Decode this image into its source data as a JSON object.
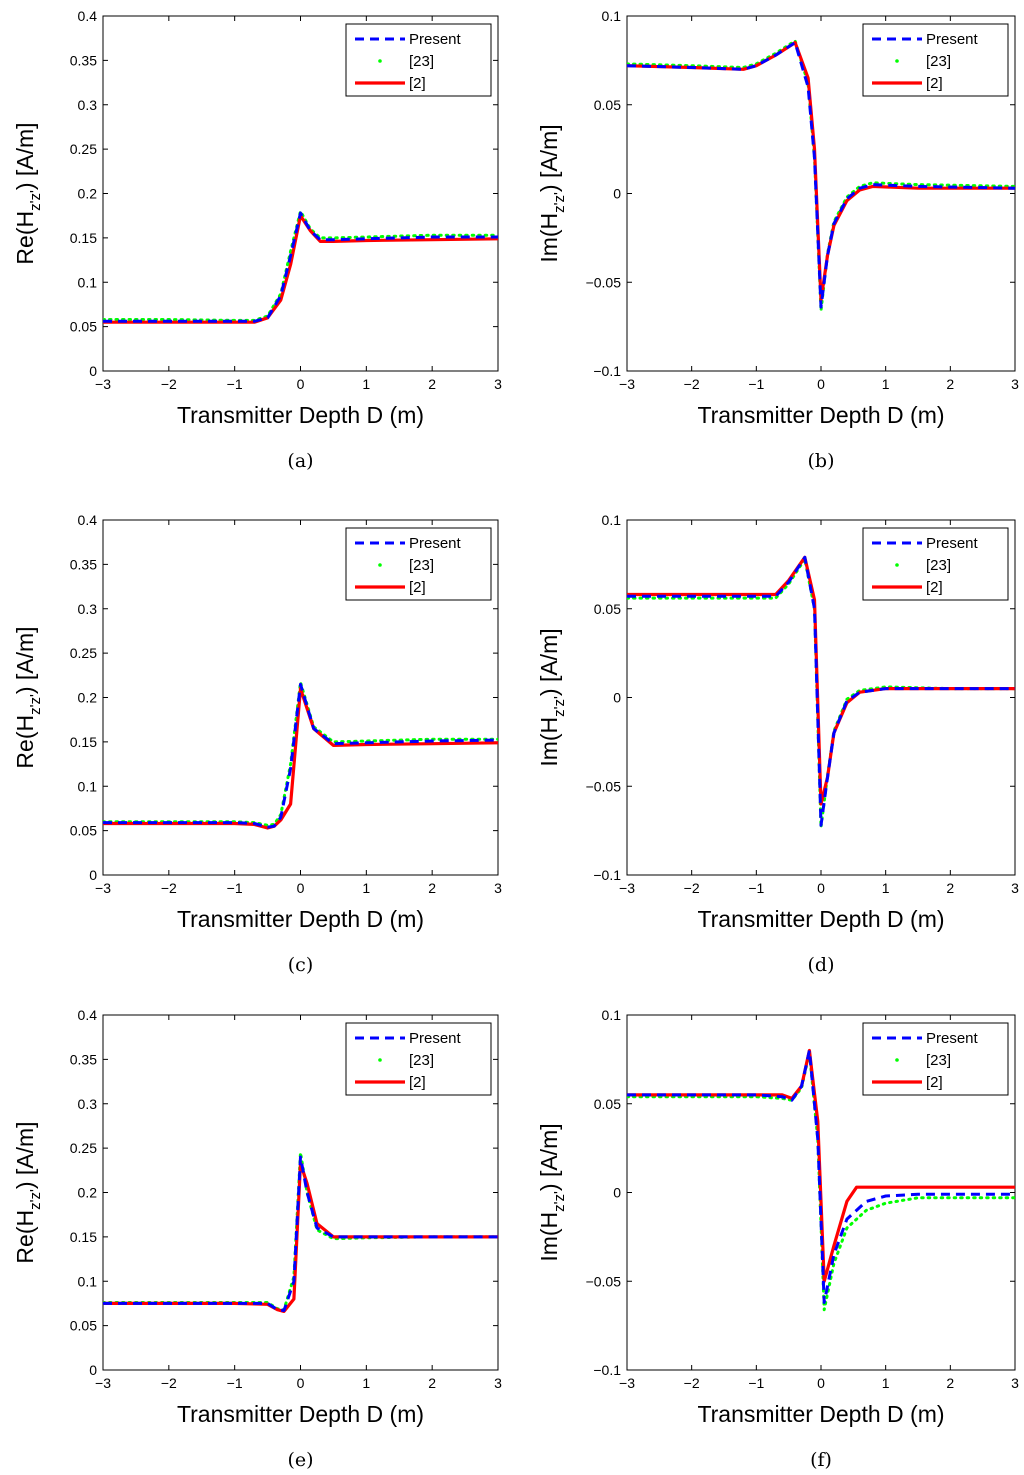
{
  "x_axis_label": "Transmitter Depth D (m)",
  "legend": [
    {
      "label": "Present",
      "color": "#0000ff",
      "style": "dashed"
    },
    {
      "label": "[23]",
      "color": "#00ff00",
      "style": "dotted"
    },
    {
      "label": "[2]",
      "color": "#ff0000",
      "style": "solid"
    }
  ],
  "chart_data": [
    {
      "type": "line",
      "caption": "(a)",
      "ylabel": "Re(H_z'z') [A/m]",
      "legend_position": "top-right",
      "xlim": [
        -3,
        3
      ],
      "ylim": [
        0,
        0.4
      ],
      "xticks": [
        -3,
        -2,
        -1,
        0,
        1,
        2,
        3
      ],
      "yticks": [
        0,
        0.05,
        0.1,
        0.15,
        0.2,
        0.25,
        0.3,
        0.35,
        0.4
      ],
      "series": [
        {
          "name": "Present",
          "color": "#0000ff",
          "style": "dashed",
          "x": [
            -3,
            -2,
            -1,
            -0.7,
            -0.5,
            -0.3,
            -0.15,
            0,
            0.15,
            0.3,
            0.5,
            1,
            2,
            3
          ],
          "y": [
            0.056,
            0.056,
            0.056,
            0.056,
            0.06,
            0.085,
            0.13,
            0.178,
            0.158,
            0.148,
            0.148,
            0.149,
            0.151,
            0.151
          ]
        },
        {
          "name": "[23]",
          "color": "#00ff00",
          "style": "dotted",
          "x": [
            -3,
            -2,
            -1,
            -0.7,
            -0.5,
            -0.3,
            -0.15,
            0,
            0.15,
            0.3,
            0.5,
            1,
            2,
            3
          ],
          "y": [
            0.058,
            0.058,
            0.057,
            0.057,
            0.062,
            0.087,
            0.135,
            0.18,
            0.16,
            0.15,
            0.15,
            0.151,
            0.153,
            0.153
          ]
        },
        {
          "name": "[2]",
          "color": "#ff0000",
          "style": "solid",
          "x": [
            -3,
            -2,
            -1,
            -0.7,
            -0.5,
            -0.3,
            -0.15,
            0,
            0.15,
            0.3,
            0.5,
            1,
            2,
            3
          ],
          "y": [
            0.055,
            0.055,
            0.055,
            0.055,
            0.06,
            0.08,
            0.12,
            0.175,
            0.158,
            0.146,
            0.146,
            0.147,
            0.148,
            0.149
          ]
        }
      ]
    },
    {
      "type": "line",
      "caption": "(b)",
      "ylabel": "Im(H_z'z') [A/m]",
      "legend_position": "top-right",
      "xlim": [
        -3,
        3
      ],
      "ylim": [
        -0.1,
        0.1
      ],
      "xticks": [
        -3,
        -2,
        -1,
        0,
        1,
        2,
        3
      ],
      "yticks": [
        -0.1,
        -0.05,
        0,
        0.05,
        0.1
      ],
      "series": [
        {
          "name": "Present",
          "color": "#0000ff",
          "style": "dashed",
          "x": [
            -3,
            -2,
            -1.2,
            -1,
            -0.7,
            -0.4,
            -0.2,
            -0.1,
            0,
            0.1,
            0.2,
            0.4,
            0.6,
            0.8,
            1.5,
            3
          ],
          "y": [
            0.072,
            0.071,
            0.07,
            0.072,
            0.078,
            0.085,
            0.06,
            0.02,
            -0.064,
            -0.035,
            -0.017,
            -0.003,
            0.003,
            0.005,
            0.004,
            0.003
          ]
        },
        {
          "name": "[23]",
          "color": "#00ff00",
          "style": "dotted",
          "x": [
            -3,
            -2,
            -1.2,
            -1,
            -0.7,
            -0.4,
            -0.2,
            -0.1,
            0,
            0.1,
            0.2,
            0.4,
            0.6,
            0.8,
            1.5,
            3
          ],
          "y": [
            0.073,
            0.072,
            0.071,
            0.073,
            0.079,
            0.086,
            0.062,
            0.02,
            -0.066,
            -0.034,
            -0.016,
            -0.002,
            0.004,
            0.006,
            0.005,
            0.004
          ]
        },
        {
          "name": "[2]",
          "color": "#ff0000",
          "style": "solid",
          "x": [
            -3,
            -2,
            -1.2,
            -1,
            -0.7,
            -0.4,
            -0.2,
            -0.1,
            0,
            0.1,
            0.2,
            0.4,
            0.6,
            0.8,
            1.5,
            3
          ],
          "y": [
            0.072,
            0.071,
            0.07,
            0.072,
            0.078,
            0.085,
            0.065,
            0.025,
            -0.06,
            -0.035,
            -0.018,
            -0.004,
            0.002,
            0.004,
            0.003,
            0.003
          ]
        }
      ]
    },
    {
      "type": "line",
      "caption": "(c)",
      "ylabel": "Re(H_z'z') [A/m]",
      "legend_position": "top-right",
      "xlim": [
        -3,
        3
      ],
      "ylim": [
        0,
        0.4
      ],
      "xticks": [
        -3,
        -2,
        -1,
        0,
        1,
        2,
        3
      ],
      "yticks": [
        0,
        0.05,
        0.1,
        0.15,
        0.2,
        0.25,
        0.3,
        0.35,
        0.4
      ],
      "series": [
        {
          "name": "Present",
          "color": "#0000ff",
          "style": "dashed",
          "x": [
            -3,
            -2,
            -1,
            -0.7,
            -0.5,
            -0.4,
            -0.3,
            -0.15,
            0,
            0.2,
            0.5,
            1,
            2,
            3
          ],
          "y": [
            0.059,
            0.059,
            0.059,
            0.058,
            0.054,
            0.055,
            0.065,
            0.12,
            0.215,
            0.165,
            0.148,
            0.149,
            0.151,
            0.152
          ]
        },
        {
          "name": "[23]",
          "color": "#00ff00",
          "style": "dotted",
          "x": [
            -3,
            -2,
            -1,
            -0.7,
            -0.5,
            -0.4,
            -0.3,
            -0.15,
            0,
            0.2,
            0.5,
            1,
            2,
            3
          ],
          "y": [
            0.06,
            0.06,
            0.06,
            0.059,
            0.056,
            0.057,
            0.068,
            0.125,
            0.217,
            0.167,
            0.15,
            0.151,
            0.153,
            0.153
          ]
        },
        {
          "name": "[2]",
          "color": "#ff0000",
          "style": "solid",
          "x": [
            -3,
            -2,
            -1,
            -0.7,
            -0.5,
            -0.4,
            -0.3,
            -0.15,
            0,
            0.2,
            0.5,
            1,
            2,
            3
          ],
          "y": [
            0.058,
            0.058,
            0.058,
            0.057,
            0.053,
            0.055,
            0.062,
            0.08,
            0.21,
            0.165,
            0.146,
            0.147,
            0.148,
            0.149
          ]
        }
      ]
    },
    {
      "type": "line",
      "caption": "(d)",
      "ylabel": "Im(H_z'z') [A/m]",
      "legend_position": "top-right",
      "xlim": [
        -3,
        3
      ],
      "ylim": [
        -0.1,
        0.1
      ],
      "xticks": [
        -3,
        -2,
        -1,
        0,
        1,
        2,
        3
      ],
      "yticks": [
        -0.1,
        -0.05,
        0,
        0.05,
        0.1
      ],
      "series": [
        {
          "name": "Present",
          "color": "#0000ff",
          "style": "dashed",
          "x": [
            -3,
            -2,
            -1,
            -0.7,
            -0.5,
            -0.25,
            -0.1,
            0,
            0.1,
            0.2,
            0.4,
            0.6,
            1,
            2,
            3
          ],
          "y": [
            0.057,
            0.057,
            0.057,
            0.057,
            0.065,
            0.079,
            0.05,
            -0.072,
            -0.045,
            -0.02,
            -0.002,
            0.003,
            0.005,
            0.005,
            0.005
          ]
        },
        {
          "name": "[23]",
          "color": "#00ff00",
          "style": "dotted",
          "x": [
            -3,
            -2,
            -1,
            -0.7,
            -0.5,
            -0.25,
            -0.1,
            0,
            0.1,
            0.2,
            0.4,
            0.6,
            1,
            2,
            3
          ],
          "y": [
            0.056,
            0.056,
            0.056,
            0.056,
            0.064,
            0.078,
            0.05,
            -0.073,
            -0.044,
            -0.019,
            -0.001,
            0.004,
            0.006,
            0.005,
            0.005
          ]
        },
        {
          "name": "[2]",
          "color": "#ff0000",
          "style": "solid",
          "x": [
            -3,
            -2,
            -1,
            -0.7,
            -0.5,
            -0.25,
            -0.1,
            0,
            0.1,
            0.2,
            0.4,
            0.6,
            1,
            2,
            3
          ],
          "y": [
            0.058,
            0.058,
            0.058,
            0.058,
            0.066,
            0.079,
            0.055,
            -0.06,
            -0.045,
            -0.02,
            -0.003,
            0.003,
            0.005,
            0.005,
            0.005
          ]
        }
      ]
    },
    {
      "type": "line",
      "caption": "(e)",
      "ylabel": "Re(H_z'z') [A/m]",
      "legend_position": "top-right",
      "xlim": [
        -3,
        3
      ],
      "ylim": [
        0,
        0.4
      ],
      "xticks": [
        -3,
        -2,
        -1,
        0,
        1,
        2,
        3
      ],
      "yticks": [
        0,
        0.05,
        0.1,
        0.15,
        0.2,
        0.25,
        0.3,
        0.35,
        0.4
      ],
      "series": [
        {
          "name": "Present",
          "color": "#0000ff",
          "style": "dashed",
          "x": [
            -3,
            -2,
            -1,
            -0.5,
            -0.35,
            -0.25,
            -0.1,
            0,
            0.1,
            0.25,
            0.5,
            1,
            2,
            3
          ],
          "y": [
            0.075,
            0.075,
            0.075,
            0.075,
            0.068,
            0.067,
            0.1,
            0.24,
            0.2,
            0.16,
            0.15,
            0.15,
            0.15,
            0.15
          ]
        },
        {
          "name": "[23]",
          "color": "#00ff00",
          "style": "dotted",
          "x": [
            -3,
            -2,
            -1,
            -0.5,
            -0.35,
            -0.25,
            -0.1,
            0,
            0.1,
            0.25,
            0.5,
            1,
            2,
            3
          ],
          "y": [
            0.076,
            0.076,
            0.076,
            0.076,
            0.069,
            0.068,
            0.105,
            0.245,
            0.2,
            0.158,
            0.148,
            0.149,
            0.15,
            0.15
          ]
        },
        {
          "name": "[2]",
          "color": "#ff0000",
          "style": "solid",
          "x": [
            -3,
            -2,
            -1,
            -0.5,
            -0.35,
            -0.25,
            -0.1,
            0,
            0.1,
            0.25,
            0.5,
            1,
            2,
            3
          ],
          "y": [
            0.075,
            0.075,
            0.075,
            0.074,
            0.068,
            0.066,
            0.08,
            0.233,
            0.21,
            0.165,
            0.15,
            0.15,
            0.15,
            0.15
          ]
        }
      ]
    },
    {
      "type": "line",
      "caption": "(f)",
      "ylabel": "Im(H_z'z') [A/m]",
      "legend_position": "top-right",
      "xlim": [
        -3,
        3
      ],
      "ylim": [
        -0.1,
        0.1
      ],
      "xticks": [
        -3,
        -2,
        -1,
        0,
        1,
        2,
        3
      ],
      "yticks": [
        -0.1,
        -0.05,
        0,
        0.05,
        0.1
      ],
      "series": [
        {
          "name": "Present",
          "color": "#0000ff",
          "style": "dashed",
          "x": [
            -3,
            -2,
            -1,
            -0.6,
            -0.45,
            -0.3,
            -0.18,
            -0.05,
            0.05,
            0.2,
            0.4,
            0.7,
            1,
            1.5,
            3
          ],
          "y": [
            0.055,
            0.055,
            0.055,
            0.054,
            0.052,
            0.06,
            0.08,
            0.03,
            -0.062,
            -0.035,
            -0.015,
            -0.005,
            -0.002,
            -0.001,
            -0.001
          ]
        },
        {
          "name": "[23]",
          "color": "#00ff00",
          "style": "dotted",
          "x": [
            -3,
            -2,
            -1,
            -0.6,
            -0.45,
            -0.3,
            -0.18,
            -0.05,
            0.05,
            0.2,
            0.4,
            0.7,
            1,
            1.5,
            3
          ],
          "y": [
            0.054,
            0.054,
            0.054,
            0.053,
            0.052,
            0.059,
            0.079,
            0.03,
            -0.066,
            -0.04,
            -0.02,
            -0.01,
            -0.006,
            -0.003,
            -0.003
          ]
        },
        {
          "name": "[2]",
          "color": "#ff0000",
          "style": "solid",
          "x": [
            -3,
            -2,
            -1,
            -0.6,
            -0.45,
            -0.3,
            -0.18,
            -0.05,
            0.05,
            0.2,
            0.4,
            0.55,
            0.7,
            1,
            3
          ],
          "y": [
            0.055,
            0.055,
            0.055,
            0.055,
            0.053,
            0.06,
            0.08,
            0.04,
            -0.05,
            -0.03,
            -0.005,
            0.003,
            0.003,
            0.003,
            0.003
          ]
        }
      ]
    }
  ]
}
